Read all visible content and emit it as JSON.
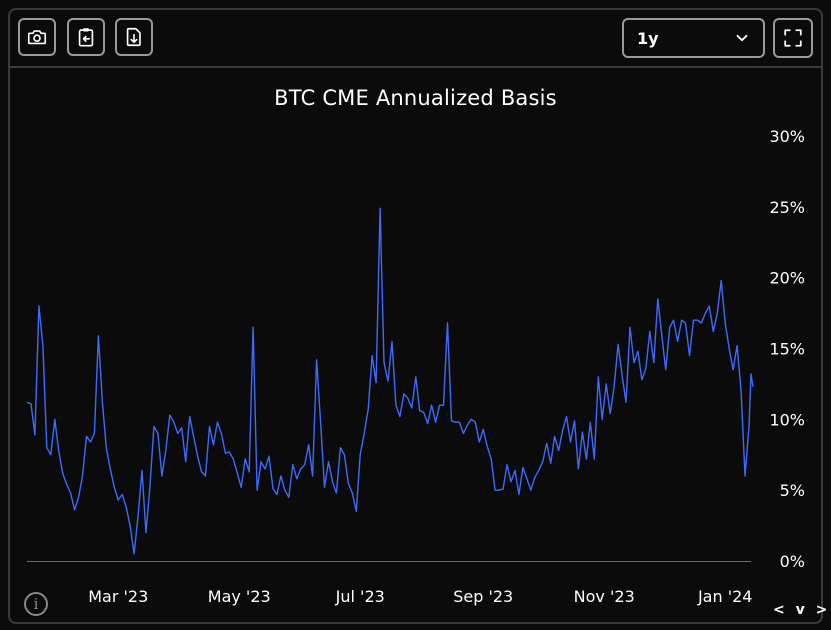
{
  "toolbar": {
    "buttons": [
      {
        "name": "screenshot-button",
        "icon": "camera-icon"
      },
      {
        "name": "copy-button",
        "icon": "clipboard-icon"
      },
      {
        "name": "download-button",
        "icon": "download-file-icon"
      }
    ],
    "range_select": {
      "value": "1y",
      "icon": "chevron-down-icon"
    },
    "fullscreen_icon": "expand-icon"
  },
  "footer": {
    "info_label": "i",
    "nav_label": "< v >"
  },
  "colors": {
    "background": "#0b0b0b",
    "line": "#3d6bff",
    "baseline": "#6a6a6a",
    "text": "#ffffff",
    "border": "#3b3b3b"
  },
  "chart_data": {
    "type": "line",
    "title": "BTC CME Annualized Basis",
    "ylim": [
      0,
      30
    ],
    "y_ticks": [
      0,
      5,
      10,
      15,
      20,
      25,
      30
    ],
    "y_tick_labels": [
      "0%",
      "5%",
      "10%",
      "15%",
      "20%",
      "25%",
      "30%"
    ],
    "x_start": "2023-01-14",
    "x_end": "2024-01-14",
    "x_tick_dates": [
      "2023-03-01",
      "2023-05-01",
      "2023-07-01",
      "2023-09-01",
      "2023-11-01",
      "2024-01-01"
    ],
    "x_tick_labels": [
      "Mar '23",
      "May '23",
      "Jul '23",
      "Sep '23",
      "Nov '23",
      "Jan '24"
    ],
    "grid": false,
    "series": [
      {
        "values": [
          [
            "2023-01-14",
            11.2
          ],
          [
            "2023-01-16",
            11.1
          ],
          [
            "2023-01-18",
            8.9
          ],
          [
            "2023-01-20",
            18.0
          ],
          [
            "2023-01-22",
            15.2
          ],
          [
            "2023-01-24",
            8.0
          ],
          [
            "2023-01-26",
            7.5
          ],
          [
            "2023-01-28",
            10.0
          ],
          [
            "2023-01-30",
            7.8
          ],
          [
            "2023-02-01",
            6.2
          ],
          [
            "2023-02-03",
            5.4
          ],
          [
            "2023-02-05",
            4.8
          ],
          [
            "2023-02-07",
            3.6
          ],
          [
            "2023-02-09",
            4.5
          ],
          [
            "2023-02-11",
            6.0
          ],
          [
            "2023-02-13",
            8.8
          ],
          [
            "2023-02-15",
            8.4
          ],
          [
            "2023-02-17",
            9.0
          ],
          [
            "2023-02-19",
            15.9
          ],
          [
            "2023-02-21",
            11.2
          ],
          [
            "2023-02-23",
            8.0
          ],
          [
            "2023-02-25",
            6.5
          ],
          [
            "2023-02-27",
            5.2
          ],
          [
            "2023-03-01",
            4.3
          ],
          [
            "2023-03-03",
            4.7
          ],
          [
            "2023-03-05",
            3.8
          ],
          [
            "2023-03-07",
            2.5
          ],
          [
            "2023-03-09",
            0.5
          ],
          [
            "2023-03-11",
            3.2
          ],
          [
            "2023-03-13",
            6.4
          ],
          [
            "2023-03-15",
            2.0
          ],
          [
            "2023-03-17",
            5.3
          ],
          [
            "2023-03-19",
            9.5
          ],
          [
            "2023-03-21",
            9.0
          ],
          [
            "2023-03-23",
            6.0
          ],
          [
            "2023-03-25",
            7.8
          ],
          [
            "2023-03-27",
            10.3
          ],
          [
            "2023-03-29",
            9.8
          ],
          [
            "2023-03-31",
            9.0
          ],
          [
            "2023-04-02",
            9.4
          ],
          [
            "2023-04-04",
            7.0
          ],
          [
            "2023-04-06",
            10.2
          ],
          [
            "2023-04-08",
            8.8
          ],
          [
            "2023-04-10",
            7.4
          ],
          [
            "2023-04-12",
            6.3
          ],
          [
            "2023-04-14",
            6.0
          ],
          [
            "2023-04-16",
            9.5
          ],
          [
            "2023-04-18",
            8.2
          ],
          [
            "2023-04-20",
            9.8
          ],
          [
            "2023-04-22",
            9.0
          ],
          [
            "2023-04-24",
            7.6
          ],
          [
            "2023-04-26",
            7.7
          ],
          [
            "2023-04-28",
            7.2
          ],
          [
            "2023-04-30",
            6.2
          ],
          [
            "2023-05-02",
            5.2
          ],
          [
            "2023-05-04",
            7.2
          ],
          [
            "2023-05-06",
            6.3
          ],
          [
            "2023-05-08",
            16.5
          ],
          [
            "2023-05-10",
            5.0
          ],
          [
            "2023-05-12",
            7.0
          ],
          [
            "2023-05-14",
            6.5
          ],
          [
            "2023-05-16",
            7.4
          ],
          [
            "2023-05-18",
            5.1
          ],
          [
            "2023-05-20",
            4.7
          ],
          [
            "2023-05-22",
            6.0
          ],
          [
            "2023-05-24",
            5.0
          ],
          [
            "2023-05-26",
            4.5
          ],
          [
            "2023-05-28",
            6.8
          ],
          [
            "2023-05-30",
            5.8
          ],
          [
            "2023-06-01",
            6.5
          ],
          [
            "2023-06-03",
            6.8
          ],
          [
            "2023-06-05",
            8.2
          ],
          [
            "2023-06-07",
            6.0
          ],
          [
            "2023-06-09",
            14.2
          ],
          [
            "2023-06-11",
            9.8
          ],
          [
            "2023-06-13",
            5.2
          ],
          [
            "2023-06-15",
            7.0
          ],
          [
            "2023-06-17",
            5.6
          ],
          [
            "2023-06-19",
            4.8
          ],
          [
            "2023-06-21",
            8.0
          ],
          [
            "2023-06-23",
            7.5
          ],
          [
            "2023-06-25",
            5.5
          ],
          [
            "2023-06-27",
            4.8
          ],
          [
            "2023-06-29",
            3.5
          ],
          [
            "2023-07-01",
            7.5
          ],
          [
            "2023-07-03",
            9.0
          ],
          [
            "2023-07-05",
            10.7
          ],
          [
            "2023-07-07",
            14.5
          ],
          [
            "2023-07-09",
            12.6
          ],
          [
            "2023-07-11",
            24.9
          ],
          [
            "2023-07-13",
            14.0
          ],
          [
            "2023-07-15",
            12.7
          ],
          [
            "2023-07-17",
            15.5
          ],
          [
            "2023-07-19",
            11.0
          ],
          [
            "2023-07-21",
            10.2
          ],
          [
            "2023-07-23",
            11.8
          ],
          [
            "2023-07-25",
            11.5
          ],
          [
            "2023-07-27",
            10.8
          ],
          [
            "2023-07-29",
            13.0
          ],
          [
            "2023-07-31",
            10.6
          ],
          [
            "2023-08-02",
            10.5
          ],
          [
            "2023-08-04",
            9.7
          ],
          [
            "2023-08-06",
            11.0
          ],
          [
            "2023-08-08",
            9.8
          ],
          [
            "2023-08-10",
            11.0
          ],
          [
            "2023-08-12",
            11.0
          ],
          [
            "2023-08-14",
            16.8
          ],
          [
            "2023-08-16",
            9.9
          ],
          [
            "2023-08-18",
            9.8
          ],
          [
            "2023-08-20",
            9.8
          ],
          [
            "2023-08-22",
            9.0
          ],
          [
            "2023-08-24",
            9.6
          ],
          [
            "2023-08-26",
            10.0
          ],
          [
            "2023-08-28",
            9.8
          ],
          [
            "2023-08-30",
            8.4
          ],
          [
            "2023-09-01",
            9.3
          ],
          [
            "2023-09-03",
            8.1
          ],
          [
            "2023-09-05",
            7.2
          ],
          [
            "2023-09-07",
            5.0
          ],
          [
            "2023-09-09",
            5.0
          ],
          [
            "2023-09-11",
            5.1
          ],
          [
            "2023-09-13",
            6.8
          ],
          [
            "2023-09-15",
            5.6
          ],
          [
            "2023-09-17",
            6.4
          ],
          [
            "2023-09-19",
            4.7
          ],
          [
            "2023-09-21",
            6.6
          ],
          [
            "2023-09-23",
            5.8
          ],
          [
            "2023-09-25",
            5.0
          ],
          [
            "2023-09-27",
            5.9
          ],
          [
            "2023-09-29",
            6.4
          ],
          [
            "2023-10-01",
            7.0
          ],
          [
            "2023-10-03",
            8.3
          ],
          [
            "2023-10-05",
            6.9
          ],
          [
            "2023-10-07",
            8.8
          ],
          [
            "2023-10-09",
            7.8
          ],
          [
            "2023-10-11",
            9.2
          ],
          [
            "2023-10-13",
            10.2
          ],
          [
            "2023-10-15",
            8.4
          ],
          [
            "2023-10-17",
            9.9
          ],
          [
            "2023-10-19",
            6.5
          ],
          [
            "2023-10-21",
            9.1
          ],
          [
            "2023-10-23",
            7.2
          ],
          [
            "2023-10-25",
            9.8
          ],
          [
            "2023-10-27",
            7.2
          ],
          [
            "2023-10-29",
            13.0
          ],
          [
            "2023-10-31",
            10.0
          ],
          [
            "2023-11-02",
            12.5
          ],
          [
            "2023-11-04",
            10.4
          ],
          [
            "2023-11-06",
            12.3
          ],
          [
            "2023-11-08",
            15.3
          ],
          [
            "2023-11-10",
            13.1
          ],
          [
            "2023-11-12",
            11.2
          ],
          [
            "2023-11-14",
            16.5
          ],
          [
            "2023-11-16",
            14.0
          ],
          [
            "2023-11-18",
            14.8
          ],
          [
            "2023-11-20",
            12.8
          ],
          [
            "2023-11-22",
            13.6
          ],
          [
            "2023-11-24",
            16.2
          ],
          [
            "2023-11-26",
            14.0
          ],
          [
            "2023-11-28",
            18.5
          ],
          [
            "2023-11-30",
            16.0
          ],
          [
            "2023-12-02",
            13.5
          ],
          [
            "2023-12-04",
            16.5
          ],
          [
            "2023-12-06",
            17.0
          ],
          [
            "2023-12-08",
            15.5
          ],
          [
            "2023-12-10",
            17.0
          ],
          [
            "2023-12-12",
            16.8
          ],
          [
            "2023-12-14",
            14.5
          ],
          [
            "2023-12-16",
            17.0
          ],
          [
            "2023-12-18",
            17.0
          ],
          [
            "2023-12-20",
            16.8
          ],
          [
            "2023-12-22",
            17.5
          ],
          [
            "2023-12-24",
            18.0
          ],
          [
            "2023-12-26",
            16.2
          ],
          [
            "2023-12-28",
            17.5
          ],
          [
            "2023-12-30",
            19.8
          ],
          [
            "2024-01-01",
            16.8
          ],
          [
            "2024-01-03",
            15.0
          ],
          [
            "2024-01-05",
            13.5
          ],
          [
            "2024-01-07",
            15.2
          ],
          [
            "2024-01-09",
            12.0
          ],
          [
            "2024-01-11",
            6.0
          ],
          [
            "2024-01-13",
            9.5
          ],
          [
            "2024-01-14",
            13.2
          ],
          [
            "2024-01-15",
            12.3
          ]
        ]
      }
    ]
  }
}
